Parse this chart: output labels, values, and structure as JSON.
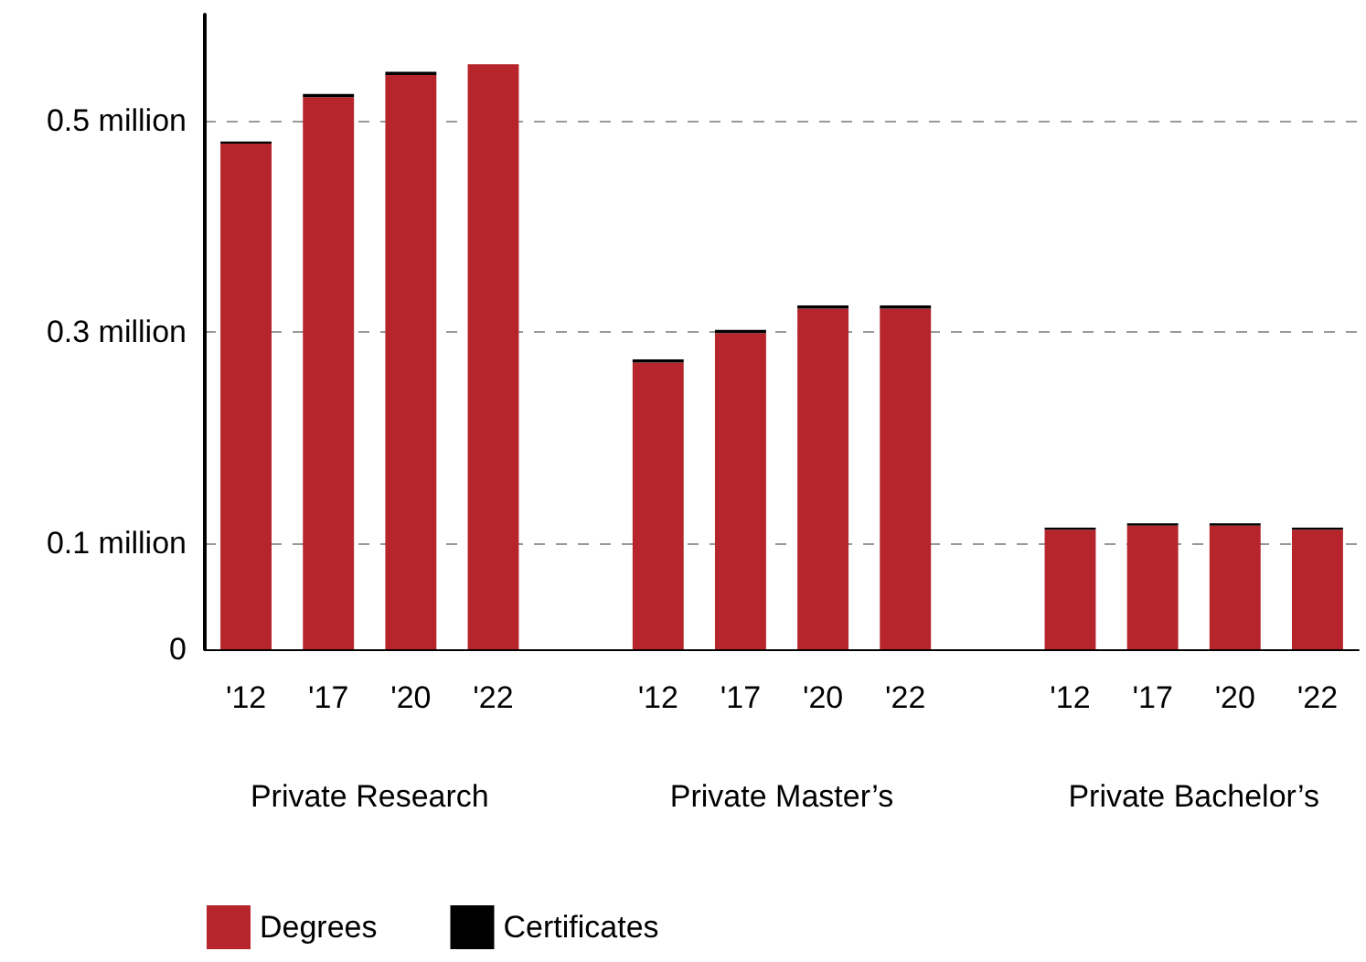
{
  "chart_data": {
    "type": "bar",
    "stacked": true,
    "categories": [
      "'12",
      "'17",
      "'20",
      "'22",
      null,
      "'12",
      "'17",
      "'20",
      "'22",
      null,
      "'12",
      "'17",
      "'20",
      "'22"
    ],
    "series": [
      {
        "name": "Degrees",
        "color": "#b5252b",
        "values": [
          0.478,
          0.522,
          0.543,
          0.553,
          null,
          0.271,
          0.299,
          0.322,
          0.322,
          null,
          0.113,
          0.117,
          0.117,
          0.113
        ]
      },
      {
        "name": "Certificates",
        "color": "#000000",
        "values": [
          0.002,
          0.003,
          0.003,
          0,
          null,
          0.003,
          0.003,
          0.003,
          0.003,
          null,
          0.002,
          0.002,
          0.002,
          0.002
        ]
      }
    ],
    "annotations": [
      "Private Research",
      "Private Master’s",
      "Private Bachelor’s"
    ],
    "ylim": [
      0,
      0.6
    ],
    "yticks": [
      0,
      {
        "value": 0.1,
        "label": "0.1 million"
      },
      {
        "value": 0.3,
        "label": "0.3 million"
      },
      {
        "value": 0.5,
        "label": "0.5 million"
      }
    ],
    "grid": "y",
    "legend": "bottom left"
  }
}
